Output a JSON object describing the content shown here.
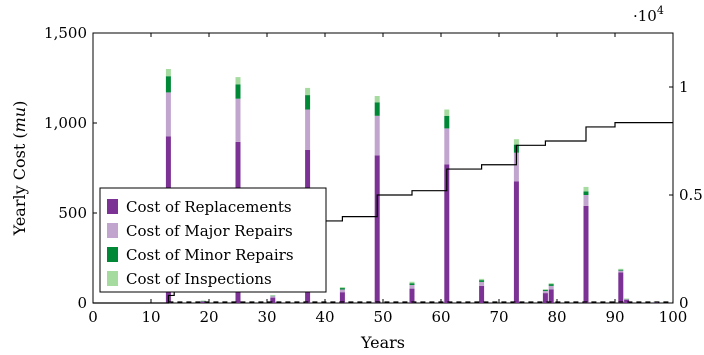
{
  "chart_data": {
    "type": "bar",
    "xlabel": "Years",
    "ylabel_prefix": "Yearly Cost (",
    "ylabel_unit": "mu",
    "ylabel_suffix": ")",
    "xlim": [
      0,
      100
    ],
    "ylim": [
      0,
      1500
    ],
    "x_ticks": [
      0,
      10,
      20,
      30,
      40,
      50,
      60,
      70,
      80,
      90,
      100
    ],
    "x_tick_labels": [
      "0",
      "10",
      "20",
      "30",
      "40",
      "50",
      "60",
      "70",
      "80",
      "90",
      "100"
    ],
    "y_ticks": [
      0,
      500,
      1000,
      1500
    ],
    "y_tick_labels": [
      "0",
      "500",
      "1,000",
      "1,500"
    ],
    "y2lim": [
      0,
      1.25
    ],
    "y2_ticks": [
      0,
      0.5,
      1
    ],
    "y2_tick_labels": [
      "0",
      "0.5",
      "1"
    ],
    "y2_multiplier_base": "·10",
    "y2_multiplier_exp": "4",
    "legend_position": "lower-left",
    "colors": {
      "replacements": "#7b3294",
      "major": "#c2a5cf",
      "minor": "#008837",
      "inspections": "#a6dba0"
    },
    "series": [
      {
        "name": "Cost of Replacements",
        "key": "replacements"
      },
      {
        "name": "Cost of Major Repairs",
        "key": "major"
      },
      {
        "name": "Cost of Minor Repairs",
        "key": "minor"
      },
      {
        "name": "Cost of Inspections",
        "key": "inspections"
      }
    ],
    "bars": [
      {
        "x": 13,
        "replacements": 925,
        "major": 245,
        "minor": 90,
        "inspections": 40
      },
      {
        "x": 19,
        "replacements": 8,
        "major": 3,
        "minor": 1,
        "inspections": 1
      },
      {
        "x": 25,
        "replacements": 895,
        "major": 240,
        "minor": 80,
        "inspections": 40
      },
      {
        "x": 31,
        "replacements": 30,
        "major": 8,
        "minor": 3,
        "inspections": 2
      },
      {
        "x": 37,
        "replacements": 850,
        "major": 225,
        "minor": 80,
        "inspections": 40
      },
      {
        "x": 43,
        "replacements": 60,
        "major": 15,
        "minor": 8,
        "inspections": 5
      },
      {
        "x": 49,
        "replacements": 820,
        "major": 220,
        "minor": 75,
        "inspections": 35
      },
      {
        "x": 55,
        "replacements": 80,
        "major": 20,
        "minor": 10,
        "inspections": 8
      },
      {
        "x": 61,
        "replacements": 770,
        "major": 200,
        "minor": 70,
        "inspections": 35
      },
      {
        "x": 67,
        "replacements": 95,
        "major": 22,
        "minor": 10,
        "inspections": 7
      },
      {
        "x": 73,
        "replacements": 675,
        "major": 160,
        "minor": 45,
        "inspections": 30
      },
      {
        "x": 78,
        "replacements": 55,
        "major": 12,
        "minor": 6,
        "inspections": 4
      },
      {
        "x": 79,
        "replacements": 75,
        "major": 20,
        "minor": 10,
        "inspections": 5
      },
      {
        "x": 85,
        "replacements": 540,
        "major": 60,
        "minor": 20,
        "inspections": 25
      },
      {
        "x": 91,
        "replacements": 170,
        "major": 10,
        "minor": 5,
        "inspections": 5
      },
      {
        "x": 92,
        "replacements": 18,
        "major": 4,
        "minor": 2,
        "inspections": 1
      },
      {
        "x": 97,
        "replacements": 4,
        "major": 1,
        "minor": 1,
        "inspections": 1
      }
    ],
    "cumulative_line": {
      "style": "solid",
      "color": "#000000",
      "steps": [
        {
          "x": 0,
          "y": 0
        },
        {
          "x": 10,
          "y": 0
        },
        {
          "x": 13,
          "y": 0.035
        },
        {
          "x": 14,
          "y": 0.35
        },
        {
          "x": 37,
          "y": 0.37
        },
        {
          "x": 38,
          "y": 0.38
        },
        {
          "x": 43,
          "y": 0.4
        },
        {
          "x": 49,
          "y": 0.5
        },
        {
          "x": 55,
          "y": 0.52
        },
        {
          "x": 61,
          "y": 0.62
        },
        {
          "x": 67,
          "y": 0.64
        },
        {
          "x": 73,
          "y": 0.73
        },
        {
          "x": 78,
          "y": 0.75
        },
        {
          "x": 85,
          "y": 0.815
        },
        {
          "x": 90,
          "y": 0.835
        },
        {
          "x": 100,
          "y": 0.835
        }
      ]
    },
    "dashed_line": {
      "style": "dashed",
      "color": "#000000",
      "y": 0,
      "x_range": [
        13,
        100
      ]
    }
  }
}
